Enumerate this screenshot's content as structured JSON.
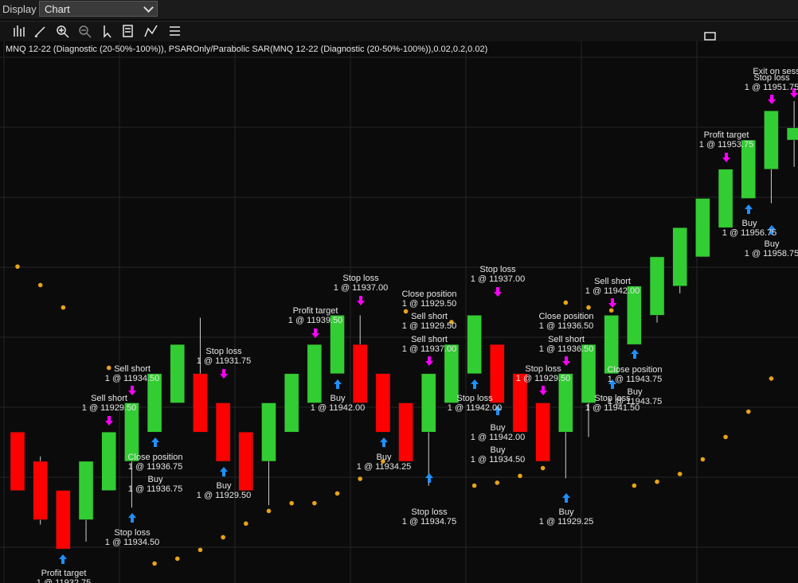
{
  "ui": {
    "display_label": "Display",
    "display_value": "Chart"
  },
  "chart_data": {
    "type": "candlestick",
    "title": "MNQ 12-22 (Diagnostic  (20-50%-100%)), PSAROnly/Parabolic SAR(MNQ 12-22 (Diagnostic  (20-50%-100%)),0.02,0.2,0.02)",
    "ylim": [
      11917,
      11971
    ],
    "grid": true,
    "up_color": "#32cd32",
    "down_color": "#ff0000",
    "open": [
      11932.5,
      11929.5,
      11926.5,
      11923.5,
      11926.5,
      11929.5,
      11932.5,
      11935.5,
      11938.5,
      11935.5,
      11932.5,
      11929.5,
      11932.5,
      11935.5,
      11938.5,
      11941.5,
      11938.5,
      11935.5,
      11932.5,
      11935.5,
      11938.5,
      11941.5,
      11938.5,
      11935.5,
      11932.5,
      11935.5,
      11938.5,
      11941.5,
      11944.5,
      11947.5,
      11950.5,
      11953.5,
      11956.5,
      11959.5,
      11962.5
    ],
    "high": [
      11932.5,
      11930,
      11926.5,
      11929.5,
      11932.5,
      11935.5,
      11938.5,
      11941.5,
      11944.25,
      11935.5,
      11932.5,
      11935.5,
      11938.5,
      11941.5,
      11944.5,
      11944.5,
      11938.5,
      11935.5,
      11938.5,
      11941.5,
      11944.5,
      11941.5,
      11938.5,
      11935.5,
      11938.5,
      11941.5,
      11944.5,
      11947.5,
      11950.5,
      11953.5,
      11956.5,
      11959.5,
      11962.5,
      11965.5,
      11966.5
    ],
    "low": [
      11926.5,
      11923,
      11920.5,
      11921.25,
      11926.5,
      11924.75,
      11932.5,
      11935.5,
      11932.5,
      11929.5,
      11926.5,
      11925,
      11932.5,
      11935.5,
      11938.5,
      11935.5,
      11932.5,
      11929.5,
      11927,
      11935.5,
      11938.5,
      11935.5,
      11932.5,
      11929.5,
      11927.75,
      11932,
      11938.5,
      11941.5,
      11943.75,
      11946.75,
      11950.5,
      11953.5,
      11956.5,
      11956,
      11959.75
    ],
    "close": [
      11926.5,
      11923.5,
      11920.5,
      11929.5,
      11932.5,
      11935.5,
      11938.5,
      11941.5,
      11932.5,
      11929.5,
      11926.5,
      11935.5,
      11938.5,
      11941.5,
      11944.5,
      11935.5,
      11932.5,
      11929.5,
      11938.5,
      11941.5,
      11944.5,
      11935.5,
      11932.5,
      11929.5,
      11938.5,
      11941.5,
      11944.5,
      11947.5,
      11950.5,
      11953.5,
      11956.5,
      11959.5,
      11962.5,
      11965.5,
      11963.75
    ],
    "psar": {
      "color": "#e8a317",
      "values": [
        11949.5,
        11947.6,
        11945.3,
        null,
        11939.1,
        null,
        11919.0,
        11919.5,
        11920.4,
        11921.7,
        11923.1,
        11924.4,
        11925.2,
        11925.2,
        11926.2,
        11927.7,
        11929.5,
        11944.9,
        null,
        11943.8,
        11927.0,
        11927.3,
        11928.0,
        11928.8,
        11945.8,
        11945.3,
        11945.0,
        11927.0,
        11927.4,
        11928.2,
        11929.7,
        11932.0,
        11934.6,
        11938.0,
        null
      ]
    },
    "annotations": [
      {
        "label": "Profit target",
        "fill": "1 @ 11932.75"
      },
      {
        "label": "Stop loss",
        "fill": "1 @ 11934.50"
      },
      {
        "label": "Sell short",
        "fill": "1 @ 11929.50"
      },
      {
        "label": "Sell short",
        "fill": "1 @ 11934.50"
      },
      {
        "label": "Close position",
        "fill": "1 @ 11936.75"
      },
      {
        "label": "Buy",
        "fill": "1 @ 11936.75"
      },
      {
        "label": "Stop loss",
        "fill": "1 @ 11931.75"
      },
      {
        "label": "Buy",
        "fill": "1 @ 11929.50"
      },
      {
        "label": "Profit target",
        "fill": "1 @ 11939.50"
      },
      {
        "label": "Stop loss",
        "fill": "1 @ 11937.00"
      },
      {
        "label": "Buy",
        "fill": "1 @ 11942.00"
      },
      {
        "label": "Buy",
        "fill": "1 @ 11934.25"
      },
      {
        "label": "Close position",
        "fill": "1 @ 11929.50"
      },
      {
        "label": "Sell short",
        "fill": "1 @ 11929.50"
      },
      {
        "label": "Sell short",
        "fill": "1 @ 11937.00"
      },
      {
        "label": "Stop loss",
        "fill": "1 @ 11934.75"
      },
      {
        "label": "Stop loss",
        "fill": "1 @ 11937.00"
      },
      {
        "label": "Stop loss",
        "fill": "1 @ 11942.00"
      },
      {
        "label": "Buy",
        "fill": "1 @ 11942.00"
      },
      {
        "label": "Buy",
        "fill": "1 @ 11934.50"
      },
      {
        "label": "Close position",
        "fill": "1 @ 11936.50"
      },
      {
        "label": "Sell short",
        "fill": "1 @ 11936.50"
      },
      {
        "label": "Stop loss",
        "fill": "1 @ 11929.50"
      },
      {
        "label": "Buy",
        "fill": "1 @ 11929.25"
      },
      {
        "label": "Sell short",
        "fill": "1 @ 11942.00"
      },
      {
        "label": "Close position",
        "fill": "1 @ 11943.75"
      },
      {
        "label": "Buy",
        "fill": "1 @ 11943.75"
      },
      {
        "label": "Stop loss",
        "fill": "1 @ 11941.50"
      },
      {
        "label": "Profit target",
        "fill": "1 @ 11953.75"
      },
      {
        "label": "Buy",
        "fill": "1 @ 11956.75"
      },
      {
        "label": "Buy",
        "fill": "1 @ 11958.75"
      },
      {
        "label": "Exit on sess",
        "fill": null
      },
      {
        "label": "Stop loss",
        "fill": "1 @ 11951.75"
      }
    ]
  }
}
